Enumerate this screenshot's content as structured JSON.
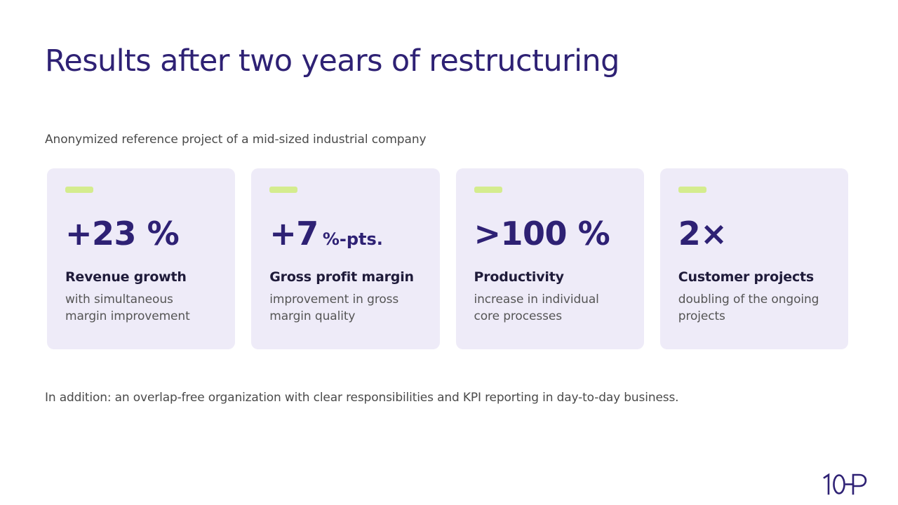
{
  "slide": {
    "title": "Results after two years of restructuring",
    "subtitle": "Anonymized reference project of a mid-sized industrial company",
    "footnote": "In addition: an overlap-free organization with clear responsibilities and KPI reporting in day-to-day business."
  },
  "cards": [
    {
      "value": "+23 %",
      "unit": "",
      "label": "Revenue growth",
      "description": "with simultaneous margin improvement"
    },
    {
      "value": "+7",
      "unit": "%-pts.",
      "label": "Gross profit margin",
      "description": "improvement in gross margin quality"
    },
    {
      "value": ">100 %",
      "unit": "",
      "label": "Productivity",
      "description": "increase in individual core processes"
    },
    {
      "value": "2×",
      "unit": "",
      "label": "Customer projects",
      "description": "doubling of the ongoing projects"
    }
  ],
  "logo": {
    "text": "10-P"
  },
  "colors": {
    "brand": "#2e2174",
    "card_background": "#eeebf8",
    "accent": "#d4ec8e",
    "text": "#4a4a4a"
  }
}
